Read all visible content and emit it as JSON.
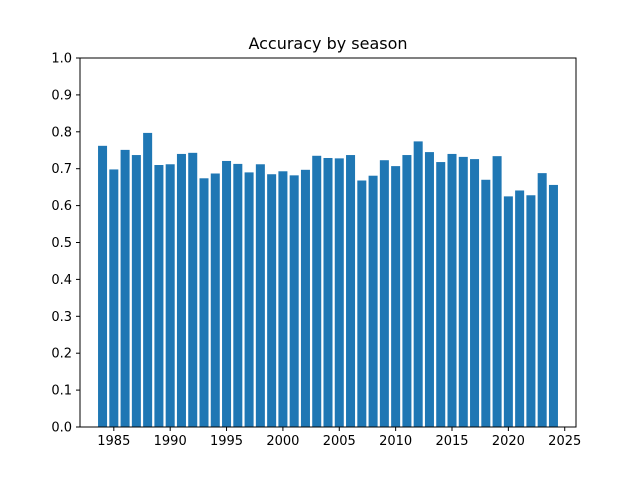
{
  "chart_data": {
    "type": "bar",
    "title": "Accuracy by season",
    "xlabel": "",
    "ylabel": "",
    "x": [
      1984,
      1985,
      1986,
      1987,
      1988,
      1989,
      1990,
      1991,
      1992,
      1993,
      1994,
      1995,
      1996,
      1997,
      1998,
      1999,
      2000,
      2001,
      2002,
      2003,
      2004,
      2005,
      2006,
      2007,
      2008,
      2009,
      2010,
      2011,
      2012,
      2013,
      2014,
      2015,
      2016,
      2017,
      2018,
      2019,
      2020,
      2021,
      2022,
      2023,
      2024
    ],
    "values": [
      0.762,
      0.698,
      0.751,
      0.737,
      0.797,
      0.71,
      0.712,
      0.74,
      0.743,
      0.674,
      0.687,
      0.721,
      0.713,
      0.69,
      0.712,
      0.685,
      0.693,
      0.682,
      0.697,
      0.735,
      0.729,
      0.728,
      0.737,
      0.668,
      0.681,
      0.723,
      0.707,
      0.737,
      0.774,
      0.745,
      0.718,
      0.74,
      0.732,
      0.726,
      0.67,
      0.734,
      0.625,
      0.641,
      0.628,
      0.688,
      0.656
    ],
    "xlim": [
      1982.0,
      2026.0
    ],
    "ylim": [
      0.0,
      1.0
    ],
    "x_ticks": [
      1985,
      1990,
      1995,
      2000,
      2005,
      2010,
      2015,
      2020,
      2025
    ],
    "y_ticks": [
      "0.0",
      "0.1",
      "0.2",
      "0.3",
      "0.4",
      "0.5",
      "0.6",
      "0.7",
      "0.8",
      "0.9",
      "1.0"
    ],
    "bar_color": "#1f77b4",
    "grid": false,
    "legend": "none"
  }
}
